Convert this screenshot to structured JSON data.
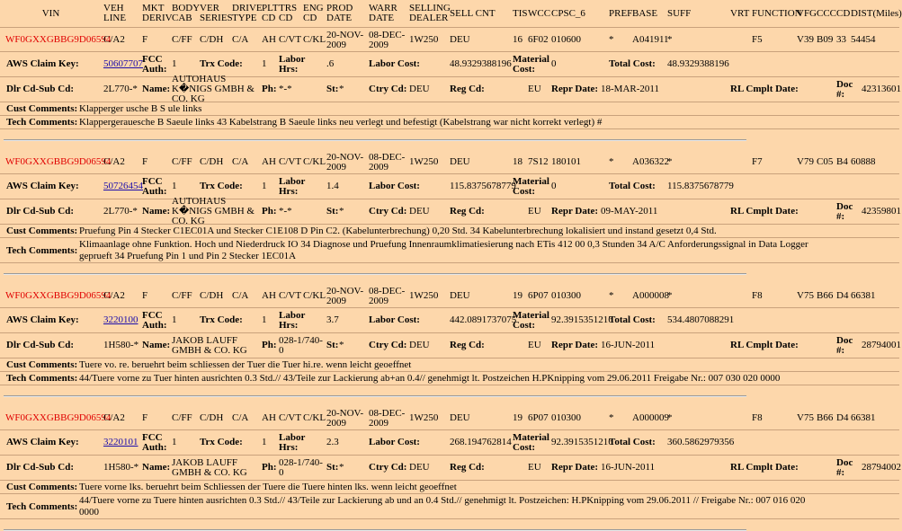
{
  "header": {
    "columns": [
      "VIN",
      "VEH LINE",
      "MKT DERIV",
      "BODY CAB",
      "VER SERIES",
      "DRIVE TYPE",
      "PLT CD",
      "TRS CD",
      "ENG CD",
      "PROD DATE",
      "WARR DATE",
      "SELLING DEALER",
      "SELL CNT",
      "TIS",
      "WCC",
      "CPSC_6",
      "PREF",
      "BASE",
      "SUFF",
      "VRT",
      "FUNCTION",
      "VFG",
      "CCC",
      "CD",
      "DIST(Miles)"
    ]
  },
  "labels": {
    "aws_claim_key": "AWS Claim Key:",
    "fcc_auth": "FCC Auth:",
    "trx_code": "Trx Code:",
    "labor_hrs": "Labor Hrs:",
    "labor_cost": "Labor Cost:",
    "material_cost": "Material Cost:",
    "total_cost": "Total Cost:",
    "dlr_cd": "Dlr Cd-Sub Cd:",
    "name": "Name:",
    "ph": "Ph:",
    "st": "St:",
    "ctry_cd": "Ctry Cd:",
    "reg_cd": "Reg Cd:",
    "repr_date": "Repr Date:",
    "rl_cmplt_date": "RL Cmplt Date:",
    "doc": "Doc #:",
    "cust_comments": "Cust Comments:",
    "tech_comments": "Tech Comments:"
  },
  "records": [
    {
      "main": {
        "vin": "WF0GXXGBBG9D06594",
        "veh_line": "C/A2",
        "mkt_deriv": "F",
        "body_cab": "C/FF",
        "ver_series": "C/DH",
        "drive_type": "C/A",
        "plt_cd": "AH",
        "trs_cd": "C/VT",
        "eng_cd": "C/KL",
        "prod_date": "20-NOV-2009",
        "warr_date": "08-DEC-2009",
        "selling_dealer": "1W250",
        "sell_cnt": "DEU",
        "tis": "16",
        "wcc": "6F02",
        "cpsc_6": "010600",
        "pref": "*",
        "base": "A041911",
        "suff": "*",
        "function": "F5",
        "vfg": "V39",
        "ccc": "B09",
        "cd": "33",
        "dist": "54454"
      },
      "claim": {
        "aws_claim_key": "50607707",
        "fcc_auth": "1",
        "trx_code": "1",
        "labor_hrs": ".6",
        "labor_cost": "48.9329388196",
        "material_cost": "0",
        "total_cost": "48.9329388196"
      },
      "dealer": {
        "dlr_cd": "2L770-*",
        "name": "AUTOHAUS K�NIGS GMBH & CO. KG",
        "ph": "*-*",
        "st": "*",
        "ctry_cd": "DEU",
        "region": "EU",
        "repr_date": "18-MAR-2011",
        "doc": "42313601"
      },
      "cust_comments": "Klapperger usche B S ule links",
      "tech_comments": "Klappergerauesche B Saeule links 43 Kabelstrang B Saeule links neu verlegt und befestigt (Kabelstrang war nicht korrekt verlegt) #"
    },
    {
      "main": {
        "vin": "WF0GXXGBBG9D06594",
        "veh_line": "C/A2",
        "mkt_deriv": "F",
        "body_cab": "C/FF",
        "ver_series": "C/DH",
        "drive_type": "C/A",
        "plt_cd": "AH",
        "trs_cd": "C/VT",
        "eng_cd": "C/KL",
        "prod_date": "20-NOV-2009",
        "warr_date": "08-DEC-2009",
        "selling_dealer": "1W250",
        "sell_cnt": "DEU",
        "tis": "18",
        "wcc": "7S12",
        "cpsc_6": "180101",
        "pref": "*",
        "base": "A036322",
        "suff": "*",
        "function": "F7",
        "vfg": "V79",
        "ccc": "C05",
        "cd": "B4",
        "dist": "60888"
      },
      "claim": {
        "aws_claim_key": "50726454",
        "fcc_auth": "1",
        "trx_code": "1",
        "labor_hrs": "1.4",
        "labor_cost": "115.8375678779",
        "material_cost": "0",
        "total_cost": "115.8375678779"
      },
      "dealer": {
        "dlr_cd": "2L770-*",
        "name": "AUTOHAUS K�NIGS GMBH & CO. KG",
        "ph": "*-*",
        "st": "*",
        "ctry_cd": "DEU",
        "region": "EU",
        "repr_date": "09-MAY-2011",
        "doc": "42359801"
      },
      "cust_comments": "Pruefung Pin 4 Stecker C1EC01A und Stecker C1E108 D Pin C2. (Kabelunterbrechung) 0,20 Std. 34 Kabelunterbrechung lokalisiert und instand gesetzt 0,4 Std.",
      "tech_comments": "Klimaanlage ohne Funktion. Hoch und Niederdruck IO 34 Diagnose und Pruefung Innenraumklimatiesierung nach ETis 412 00 0,3 Stunden 34 A/C Anforderungssignal in Data Logger geprueft 34 Pruefung Pin 1 und Pin 2 Stecker 1EC01A"
    },
    {
      "main": {
        "vin": "WF0GXXGBBG9D06594",
        "veh_line": "C/A2",
        "mkt_deriv": "F",
        "body_cab": "C/FF",
        "ver_series": "C/DH",
        "drive_type": "C/A",
        "plt_cd": "AH",
        "trs_cd": "C/VT",
        "eng_cd": "C/KL",
        "prod_date": "20-NOV-2009",
        "warr_date": "08-DEC-2009",
        "selling_dealer": "1W250",
        "sell_cnt": "DEU",
        "tis": "19",
        "wcc": "6P07",
        "cpsc_6": "010300",
        "pref": "*",
        "base": "A000008",
        "suff": "*",
        "function": "F8",
        "vfg": "V75",
        "ccc": "B66",
        "cd": "D4",
        "dist": "66381"
      },
      "claim": {
        "aws_claim_key": "3220100",
        "fcc_auth": "1",
        "trx_code": "1",
        "labor_hrs": "3.7",
        "labor_cost": "442.0891737075",
        "material_cost": "92.3915351216",
        "total_cost": "534.4807088291"
      },
      "dealer": {
        "dlr_cd": "1H580-*",
        "name": "JAKOB LAUFF GMBH & CO. KG",
        "ph": "028-1/740-0",
        "st": "*",
        "ctry_cd": "DEU",
        "region": "EU",
        "repr_date": "16-JUN-2011",
        "doc": "28794001"
      },
      "cust_comments": "Tuere vo. re. beruehrt beim schliessen der Tuer die Tuer hi.re. wenn leicht geoeffnet",
      "tech_comments": "44/Tuere vorne zu Tuer hinten ausrichten 0.3 Std.// 43/Teile zur Lackierung ab+an 0.4// genehmigt lt. Postzeichen H.PKnipping vom 29.06.2011 Freigabe Nr.: 007 030 020 0000"
    },
    {
      "main": {
        "vin": "WF0GXXGBBG9D06594",
        "veh_line": "C/A2",
        "mkt_deriv": "F",
        "body_cab": "C/FF",
        "ver_series": "C/DH",
        "drive_type": "C/A",
        "plt_cd": "AH",
        "trs_cd": "C/VT",
        "eng_cd": "C/KL",
        "prod_date": "20-NOV-2009",
        "warr_date": "08-DEC-2009",
        "selling_dealer": "1W250",
        "sell_cnt": "DEU",
        "tis": "19",
        "wcc": "6P07",
        "cpsc_6": "010300",
        "pref": "*",
        "base": "A000009",
        "suff": "*",
        "function": "F8",
        "vfg": "V75",
        "ccc": "B66",
        "cd": "D4",
        "dist": "66381"
      },
      "claim": {
        "aws_claim_key": "3220101",
        "fcc_auth": "1",
        "trx_code": "1",
        "labor_hrs": "2.3",
        "labor_cost": "268.194762814",
        "material_cost": "92.3915351216",
        "total_cost": "360.5862979356"
      },
      "dealer": {
        "dlr_cd": "1H580-*",
        "name": "JAKOB LAUFF GMBH & CO. KG",
        "ph": "028-1/740-0",
        "st": "*",
        "ctry_cd": "DEU",
        "region": "EU",
        "repr_date": "16-JUN-2011",
        "doc": "28794002"
      },
      "cust_comments": "Tuere vorne lks. beruehrt beim Schliessen der Tuere die Tuere hinten lks. wenn leicht geoeffnet",
      "tech_comments": "44/Tuere vorne zu Tuere hinten ausrichten 0.3 Std.// 43/Teile zur Lackierung ab und an 0.4 Std.// genehmigt lt. Postzeichen: H.PKnipping vom 29.06.2011 // Freigabe Nr.: 007 016 020 0000"
    }
  ]
}
